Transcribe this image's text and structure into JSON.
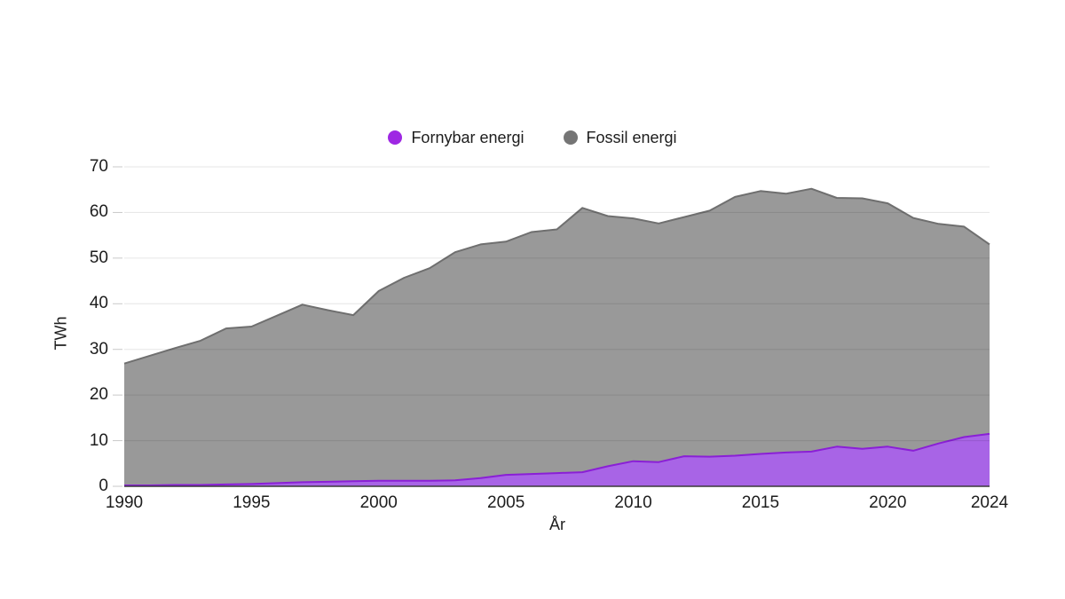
{
  "legend": {
    "items": [
      {
        "label": "Fornybar energi",
        "color": "#9e27e3"
      },
      {
        "label": "Fossil energi",
        "color": "#757575"
      }
    ]
  },
  "axes": {
    "y_ticks": [
      0,
      10,
      20,
      30,
      40,
      50,
      60,
      70
    ],
    "x_ticks": [
      1990,
      1995,
      2000,
      2005,
      2010,
      2015,
      2020,
      2024
    ]
  },
  "colors": {
    "text": "#1d1d1d",
    "gridline": "rgba(0,0,0,0.10)",
    "tick": "#c9c9c9",
    "axis_line": "#3a3a3a",
    "background": "#ffffff"
  },
  "chart_data": {
    "type": "area",
    "stacked": true,
    "title": "",
    "xlabel": "År",
    "ylabel": "TWh",
    "ylim": [
      0,
      70
    ],
    "xlim": [
      1990,
      2024
    ],
    "grid": "horizontal",
    "legend_position": "top-center",
    "x": [
      1990,
      1991,
      1992,
      1993,
      1994,
      1995,
      1996,
      1997,
      1998,
      1999,
      2000,
      2001,
      2002,
      2003,
      2004,
      2005,
      2006,
      2007,
      2008,
      2009,
      2010,
      2011,
      2012,
      2013,
      2014,
      2015,
      2016,
      2017,
      2018,
      2019,
      2020,
      2021,
      2022,
      2023,
      2024
    ],
    "series": [
      {
        "name": "Fornybar energi",
        "fill": "#a864e6",
        "line": "#8a1fd6",
        "values": [
          0.2,
          0.2,
          0.3,
          0.3,
          0.4,
          0.5,
          0.7,
          0.9,
          1.0,
          1.1,
          1.2,
          1.2,
          1.2,
          1.3,
          1.8,
          2.5,
          2.7,
          2.9,
          3.1,
          4.4,
          5.5,
          5.3,
          6.6,
          6.5,
          6.7,
          7.1,
          7.4,
          7.6,
          8.7,
          8.2,
          8.7,
          7.8,
          9.4,
          10.8,
          11.5
        ]
      },
      {
        "name": "Fossil energi",
        "fill": "#999999",
        "line": "#6f6f6f",
        "values": [
          26.7,
          28.4,
          30.0,
          31.6,
          34.2,
          34.5,
          36.7,
          38.9,
          37.6,
          36.4,
          41.6,
          44.5,
          46.6,
          50.0,
          51.2,
          51.1,
          53.0,
          53.4,
          57.9,
          54.8,
          53.2,
          52.3,
          52.4,
          53.9,
          56.7,
          57.6,
          56.7,
          57.6,
          54.5,
          54.9,
          53.3,
          51.0,
          48.1,
          46.1,
          41.5
        ]
      }
    ]
  }
}
